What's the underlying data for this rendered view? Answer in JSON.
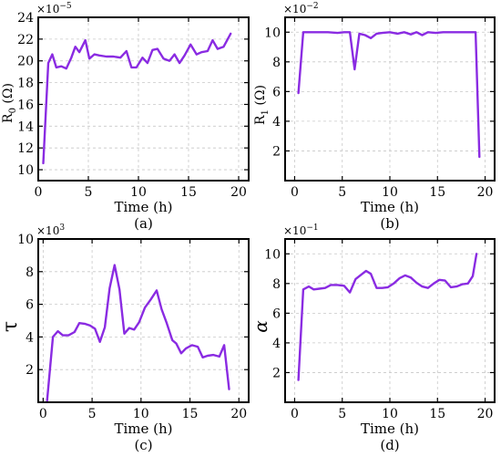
{
  "chart_data": [
    {
      "type": "line",
      "panel": "a",
      "caption": "(a)",
      "xlabel": "Time (h)",
      "ylabel": "R0 (Ω)",
      "ylabel_main": "R",
      "ylabel_sub": "0",
      "ylabel_unit": " (Ω)",
      "multiplier_base": "×10",
      "multiplier_exp": "−5",
      "xlim": [
        0,
        21
      ],
      "ylim": [
        9,
        24
      ],
      "xticks": [
        "0",
        "5",
        "10",
        "15",
        "20"
      ],
      "xtick_values": [
        0,
        5,
        10,
        15,
        20
      ],
      "yticks": [
        "10",
        "12",
        "14",
        "16",
        "18",
        "20",
        "22",
        "24"
      ],
      "ytick_values": [
        10,
        12,
        14,
        16,
        18,
        20,
        22,
        24
      ],
      "grid": true,
      "color": "#8a2be2",
      "x": [
        0.5,
        1.0,
        1.4,
        1.8,
        2.3,
        2.8,
        3.3,
        3.7,
        4.1,
        4.7,
        5.1,
        5.6,
        6.1,
        6.8,
        7.5,
        8.2,
        8.8,
        9.3,
        9.8,
        10.4,
        10.9,
        11.4,
        11.9,
        12.5,
        13.1,
        13.6,
        14.1,
        14.6,
        15.2,
        15.8,
        16.3,
        16.9,
        17.4,
        17.9,
        18.5,
        19.2
      ],
      "y": [
        10.6,
        19.8,
        20.6,
        19.4,
        19.5,
        19.3,
        20.3,
        21.3,
        20.8,
        21.9,
        20.2,
        20.6,
        20.5,
        20.4,
        20.4,
        20.3,
        20.9,
        19.4,
        19.4,
        20.3,
        19.8,
        21.0,
        21.1,
        20.2,
        20.0,
        20.6,
        19.8,
        20.5,
        21.5,
        20.6,
        20.8,
        20.9,
        21.9,
        21.1,
        21.3,
        22.5
      ]
    },
    {
      "type": "line",
      "panel": "b",
      "caption": "(b)",
      "xlabel": "Time (h)",
      "ylabel": "R1 (Ω)",
      "ylabel_main": "R",
      "ylabel_sub": "1",
      "ylabel_unit": " (Ω)",
      "multiplier_base": "×10",
      "multiplier_exp": "−2",
      "xlim": [
        -1,
        21
      ],
      "ylim": [
        0,
        11
      ],
      "xticks": [
        "0",
        "5",
        "10",
        "15",
        "20"
      ],
      "xtick_values": [
        0,
        5,
        10,
        15,
        20
      ],
      "yticks": [
        "2",
        "4",
        "6",
        "8",
        "10"
      ],
      "ytick_values": [
        2,
        4,
        6,
        8,
        10
      ],
      "grid": true,
      "color": "#8a2be2",
      "x": [
        0.4,
        0.9,
        1.5,
        2.5,
        3.5,
        4.5,
        5.2,
        5.8,
        6.3,
        6.8,
        7.4,
        8.0,
        8.6,
        9.2,
        10.0,
        10.8,
        11.5,
        12.2,
        12.8,
        13.4,
        14.0,
        14.8,
        15.6,
        16.5,
        17.5,
        18.5,
        19.0,
        19.4
      ],
      "y": [
        5.9,
        10.0,
        10.0,
        10.0,
        10.0,
        9.95,
        10.0,
        10.0,
        7.5,
        9.9,
        9.8,
        9.6,
        9.9,
        9.95,
        10.0,
        9.9,
        10.0,
        9.85,
        10.0,
        9.8,
        10.0,
        9.95,
        10.0,
        10.0,
        10.0,
        10.0,
        10.0,
        1.6
      ]
    },
    {
      "type": "line",
      "panel": "c",
      "caption": "(c)",
      "xlabel": "Time (h)",
      "ylabel": "τ",
      "multiplier_base": "×10",
      "multiplier_exp": "3",
      "xlim": [
        -0.5,
        21
      ],
      "ylim": [
        0,
        10
      ],
      "xticks": [
        "0",
        "5",
        "10",
        "15",
        "20"
      ],
      "xtick_values": [
        0,
        5,
        10,
        15,
        20
      ],
      "yticks": [
        "2",
        "4",
        "6",
        "8",
        "10"
      ],
      "ytick_values": [
        2,
        4,
        6,
        8,
        10
      ],
      "grid": true,
      "color": "#8a2be2",
      "x": [
        0.4,
        1.0,
        1.5,
        2.0,
        2.6,
        3.2,
        3.7,
        4.3,
        4.8,
        5.3,
        5.8,
        6.3,
        6.8,
        7.3,
        7.8,
        8.3,
        8.8,
        9.3,
        9.8,
        10.4,
        11.0,
        11.6,
        12.1,
        12.6,
        13.2,
        13.6,
        14.1,
        14.6,
        15.2,
        15.8,
        16.3,
        16.8,
        17.4,
        18.0,
        18.5,
        19.0
      ],
      "y": [
        0.1,
        4.0,
        4.35,
        4.1,
        4.1,
        4.3,
        4.85,
        4.8,
        4.7,
        4.5,
        3.7,
        4.6,
        7.0,
        8.4,
        6.9,
        4.2,
        4.55,
        4.45,
        4.9,
        5.8,
        6.3,
        6.85,
        5.7,
        4.9,
        3.8,
        3.6,
        3.0,
        3.3,
        3.5,
        3.4,
        2.75,
        2.85,
        2.9,
        2.8,
        3.5,
        0.8
      ]
    },
    {
      "type": "line",
      "panel": "d",
      "caption": "(d)",
      "xlabel": "Time (h)",
      "ylabel": "α",
      "multiplier_base": "×10",
      "multiplier_exp": "−1",
      "xlim": [
        -1,
        21
      ],
      "ylim": [
        0,
        11
      ],
      "xticks": [
        "0",
        "5",
        "10",
        "15",
        "20"
      ],
      "xtick_values": [
        0,
        5,
        10,
        15,
        20
      ],
      "yticks": [
        "2",
        "4",
        "6",
        "8",
        "10"
      ],
      "ytick_values": [
        2,
        4,
        6,
        8,
        10
      ],
      "grid": true,
      "color": "#8a2be2",
      "x": [
        0.4,
        0.9,
        1.5,
        2.0,
        2.6,
        3.2,
        3.8,
        4.5,
        5.2,
        5.8,
        6.4,
        7.0,
        7.5,
        8.0,
        8.6,
        9.2,
        9.8,
        10.4,
        11.0,
        11.6,
        12.2,
        12.8,
        13.4,
        14.0,
        14.6,
        15.2,
        15.8,
        16.4,
        17.0,
        17.6,
        18.2,
        18.7,
        19.1
      ],
      "y": [
        1.5,
        7.6,
        7.8,
        7.6,
        7.65,
        7.7,
        7.9,
        7.9,
        7.85,
        7.4,
        8.3,
        8.6,
        8.85,
        8.65,
        7.7,
        7.7,
        7.75,
        8.0,
        8.35,
        8.55,
        8.4,
        8.05,
        7.8,
        7.7,
        8.0,
        8.25,
        8.2,
        7.75,
        7.8,
        7.95,
        8.0,
        8.5,
        10.0
      ]
    }
  ]
}
